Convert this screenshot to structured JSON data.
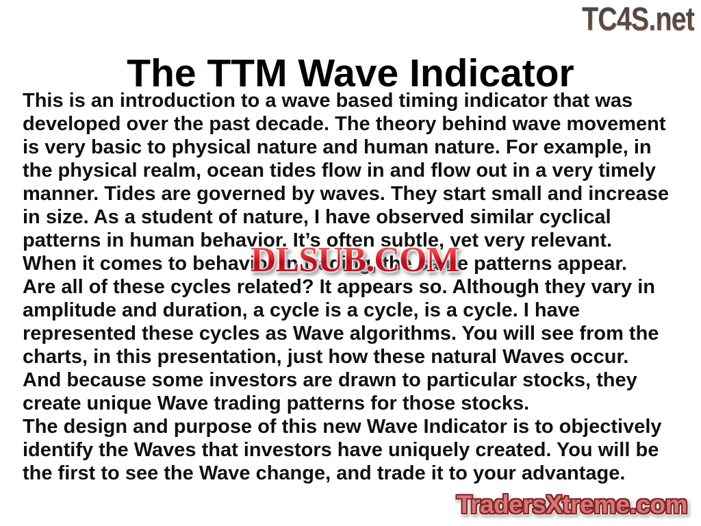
{
  "slide": {
    "title": "The TTM Wave Indicator",
    "body_text": "This is an introduction to a wave based timing indicator that was\ndeveloped over the past decade. The theory behind wave movement\nis very basic to physical nature and human nature. For example, in\nthe physical realm, ocean tides flow in and flow out in a very timely\nmanner. Tides are governed by waves. They start small and increase\nin size. As a student of nature, I have observed similar cyclical\npatterns in human behavior. It’s often subtle, yet very relevant.\nWhen it comes to behavior in trading, the same patterns appear.\nAre all of these cycles related? It appears so. Although they vary in\namplitude and duration, a cycle is a cycle, is a cycle. I have\nrepresented these cycles as Wave algorithms. You will see from the\ncharts, in this presentation, just how these natural Waves occur.\nAnd because some investors are drawn to particular stocks, they\ncreate unique Wave trading patterns for those stocks.\nThe design and purpose of this new Wave Indicator is to objectively\nidentify the Waves that investors have uniquely created. You will be\nthe first to see the Wave change, and trade it to your advantage."
  },
  "watermarks": {
    "top_right": {
      "text": "TC4S.net",
      "color_top": "#47474a",
      "color_bottom": "#84514a"
    },
    "center": {
      "text": "DLSUB.COM",
      "fill_color": "#d01a2e",
      "outline_color": "#ffffff",
      "shadow_color": "#6e6e6e"
    },
    "bottom_right": {
      "text": "TradersXtreme.com",
      "fill_color": "#da7676",
      "outline_color": "#7e2727",
      "halo_color": "#ffffff"
    }
  },
  "colors": {
    "background": "#ffffff",
    "title_text": "#000000",
    "body_text": "#101010"
  }
}
